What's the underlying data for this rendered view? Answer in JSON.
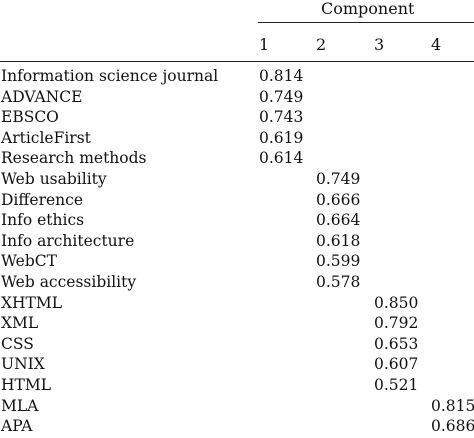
{
  "table": {
    "spanner": "Component",
    "columns": [
      "1",
      "2",
      "3",
      "4"
    ],
    "rows": [
      {
        "label": "Information science journal",
        "col": 1,
        "value": "0.814"
      },
      {
        "label": "ADVANCE",
        "col": 1,
        "value": "0.749"
      },
      {
        "label": "EBSCO",
        "col": 1,
        "value": "0.743"
      },
      {
        "label": "ArticleFirst",
        "col": 1,
        "value": "0.619"
      },
      {
        "label": "Research methods",
        "col": 1,
        "value": "0.614"
      },
      {
        "label": "Web usability",
        "col": 2,
        "value": "0.749"
      },
      {
        "label": "Difference",
        "col": 2,
        "value": "0.666"
      },
      {
        "label": "Info ethics",
        "col": 2,
        "value": "0.664"
      },
      {
        "label": "Info architecture",
        "col": 2,
        "value": "0.618"
      },
      {
        "label": "WebCT",
        "col": 2,
        "value": "0.599"
      },
      {
        "label": "Web accessibility",
        "col": 2,
        "value": "0.578"
      },
      {
        "label": "XHTML",
        "col": 3,
        "value": "0.850"
      },
      {
        "label": "XML",
        "col": 3,
        "value": "0.792"
      },
      {
        "label": "CSS",
        "col": 3,
        "value": "0.653"
      },
      {
        "label": "UNIX",
        "col": 3,
        "value": "0.607"
      },
      {
        "label": "HTML",
        "col": 3,
        "value": "0.521"
      },
      {
        "label": "MLA",
        "col": 4,
        "value": "0.815"
      },
      {
        "label": "APA",
        "col": 4,
        "value": "0.686"
      }
    ]
  }
}
